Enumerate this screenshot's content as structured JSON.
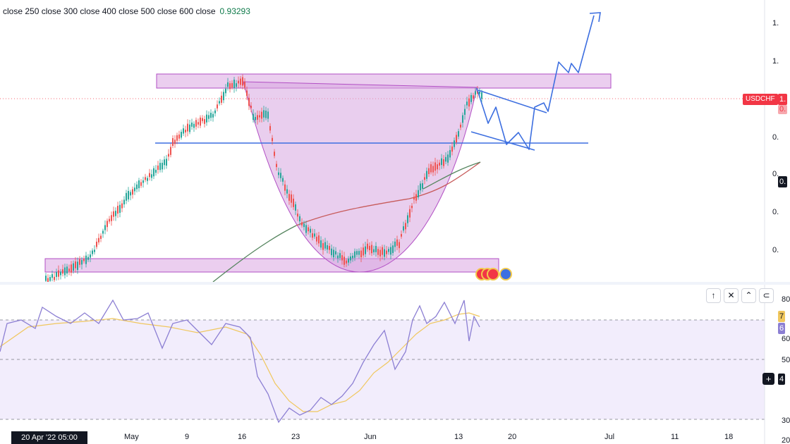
{
  "legend": {
    "text": "close 250 close 300 close 400 close 500 close 600 close",
    "value": "0.93293"
  },
  "price_axis": {
    "ticks": [
      "1.",
      "1.",
      "0.",
      "0.",
      "0.",
      "0."
    ],
    "symbol_badge": "USDCHF",
    "symbol_price_fragment": "1.",
    "symbol_price_fragment2": "0.",
    "ma_badge": "0.",
    "colors": {
      "symbol": "#f23645",
      "ma": "#131722"
    }
  },
  "rsi_axis": {
    "ticks": [
      "80",
      "60",
      "50",
      "30",
      "20"
    ],
    "badge_signal": "7",
    "badge_rsi": "6",
    "badge_cursor": "4"
  },
  "pane_controls": [
    {
      "name": "move-up-icon",
      "glyph": "↑"
    },
    {
      "name": "close-icon",
      "glyph": "✕"
    },
    {
      "name": "collapse-icon",
      "glyph": "⌃"
    },
    {
      "name": "more-icon",
      "glyph": "⊂"
    }
  ],
  "time_axis": {
    "crosshair": "20 Apr '22  05:00",
    "labels": [
      "May",
      "9",
      "16",
      "23",
      "Jun",
      "13",
      "20",
      "Jul",
      "11",
      "18"
    ]
  },
  "colors": {
    "zone_fill": "#ce93d8",
    "cup_fill": "#d7a6e0",
    "arrow": "#3d6fe0",
    "up_candle": "#26a69a",
    "down_candle": "#ef5350",
    "ma_green": "#56855f",
    "ma_red": "#c75b5b",
    "rsi_line": "#8c7fd3",
    "rsi_signal": "#f0c75e",
    "rsi_band": "#ede6fb"
  },
  "plus_button": "+"
}
